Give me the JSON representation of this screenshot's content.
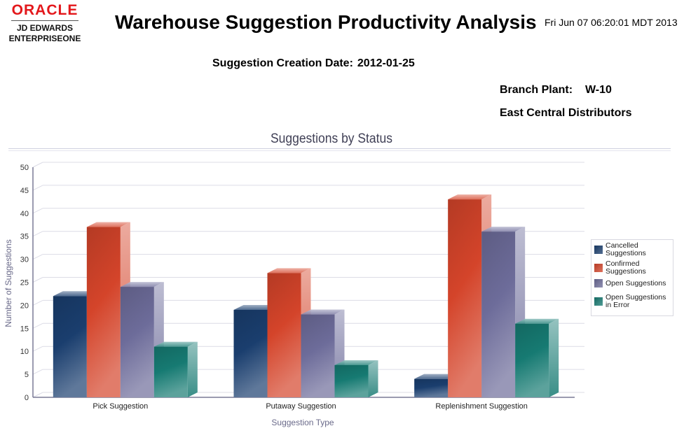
{
  "header": {
    "logo": {
      "brand": "ORACLE",
      "line1": "JD EDWARDS",
      "line2": "ENTERPRISEONE"
    },
    "title": "Warehouse Suggestion Productivity Analysis",
    "timestamp": "Fri Jun 07 06:20:01 MDT 2013"
  },
  "filters": {
    "creation_date_label": "Suggestion Creation Date:",
    "creation_date_value": "2012-01-25",
    "branch_plant_label": "Branch Plant:",
    "branch_plant_value": "W-10",
    "branch_plant_name": "East Central Distributors"
  },
  "colors": {
    "brand_red": "#e3171b",
    "cancelled": "#1a3e6e",
    "confirmed": "#d4442a",
    "open": "#6d6c9a",
    "error": "#167a72",
    "grid": "#dcdce6",
    "axis": "#7a7a96",
    "axis_label": "#6a6a8a"
  },
  "chart_data": {
    "type": "bar",
    "style": "3d-clustered",
    "title": "Suggestions by Status",
    "xlabel": "Suggestion Type",
    "ylabel": "Number of Suggestions",
    "ylim": [
      0,
      50
    ],
    "yticks": [
      0,
      5,
      10,
      15,
      20,
      25,
      30,
      35,
      40,
      45,
      50
    ],
    "grid": true,
    "legend_position": "right",
    "categories": [
      "Pick Suggestion",
      "Putaway Suggestion",
      "Replenishment Suggestion"
    ],
    "series": [
      {
        "name": "Cancelled Suggestions",
        "legend_lines": [
          "Cancelled",
          "Suggestions"
        ],
        "color_key": "cancelled",
        "values": [
          22,
          19,
          4
        ]
      },
      {
        "name": "Confirmed Suggestions",
        "legend_lines": [
          "Confirmed",
          "Suggestions"
        ],
        "color_key": "confirmed",
        "values": [
          37,
          27,
          43
        ]
      },
      {
        "name": "Open Suggestions",
        "legend_lines": [
          "Open Suggestions"
        ],
        "color_key": "open",
        "values": [
          24,
          18,
          36
        ]
      },
      {
        "name": "Open Suggestions in Error",
        "legend_lines": [
          "Open Suggestions",
          "in Error"
        ],
        "color_key": "error",
        "values": [
          11,
          7,
          16
        ]
      }
    ]
  }
}
